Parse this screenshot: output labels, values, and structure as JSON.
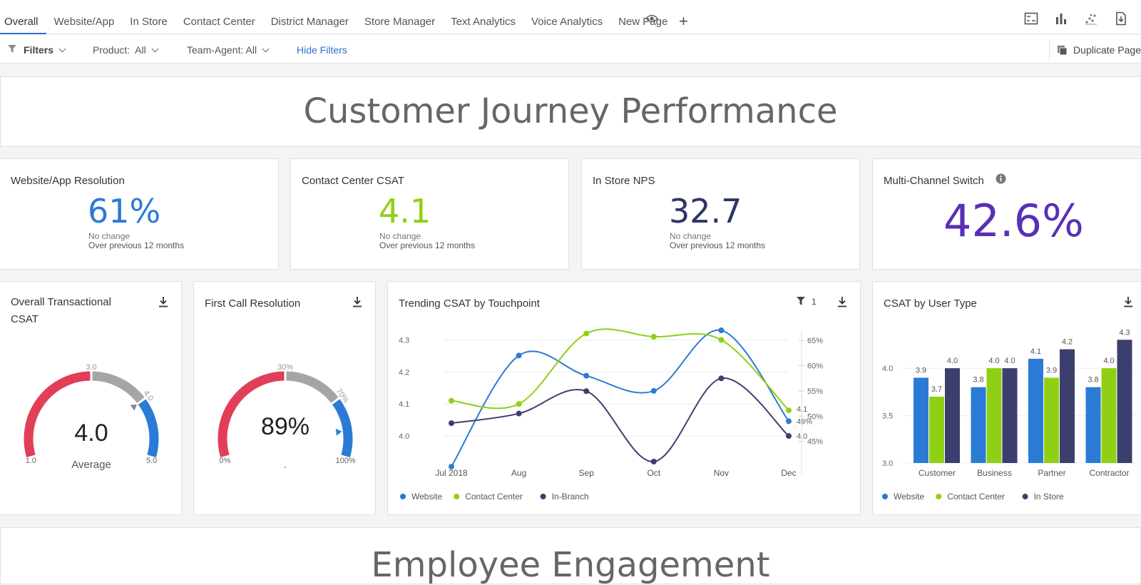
{
  "tabs": [
    "Overall",
    "Website/App",
    "In Store",
    "Contact Center",
    "District Manager",
    "Store Manager",
    "Text Analytics",
    "Voice Analytics",
    "New Page"
  ],
  "toolbar_icons": [
    "layout-icon",
    "bar-chart-icon",
    "scatter-icon",
    "export-icon"
  ],
  "filters": {
    "label": "Filters",
    "product_label": "Product:",
    "product_value": "All",
    "team_label": "Team-Agent:",
    "team_value": "All",
    "hide": "Hide Filters",
    "duplicate": "Duplicate Page"
  },
  "colors": {
    "website": "#2b7bd6",
    "contact_center": "#8fd014",
    "in_store": "#3b3f6e",
    "gauge_red": "#e23e57",
    "gauge_gray": "#a5a5a5",
    "gauge_blue": "#2b7bd6",
    "kpi_purple": "#5a2fb8"
  },
  "section1_title": "Customer Journey Performance",
  "section2_title": "Employee Engagement",
  "kpis": [
    {
      "title": "Website/App Resolution",
      "value": "61%",
      "change": "No change",
      "period": "Over previous 12 months",
      "color": "#2b7bd6"
    },
    {
      "title": "Contact Center CSAT",
      "value": "4.1",
      "change": "No change",
      "period": "Over previous 12 months",
      "color": "#8fd014"
    },
    {
      "title": "In Store NPS",
      "value": "32.7",
      "change": "No change",
      "period": "Over previous 12 months",
      "color": "#2d3563"
    },
    {
      "title": "Multi-Channel Switch",
      "value": "42.6%",
      "color": "#5a2fb8"
    }
  ],
  "gauge1": {
    "title_line1": "Overall Transactional",
    "title_line2": "CSAT",
    "value": "4.0",
    "caption": "Average",
    "min": "1.0",
    "max": "5.0",
    "mark1": "3.0",
    "mark2": "4.0",
    "level": 0.75
  },
  "gauge2": {
    "title": "First Call Resolution",
    "value": "89%",
    "caption": ".",
    "min": "0%",
    "max": "100%",
    "mark1": "30%",
    "mark2": "70%",
    "level": 0.89
  },
  "trend": {
    "title": "Trending CSAT by Touchpoint",
    "filter_count": "1",
    "end_labels": [
      "4.1",
      "49%",
      "4.0"
    ]
  },
  "usertype": {
    "title": "CSAT by User Type"
  },
  "chart_data": [
    {
      "type": "line",
      "title": "Trending CSAT by Touchpoint",
      "x": [
        "Jul 2018",
        "Aug",
        "Sep",
        "Oct",
        "Nov",
        "Dec"
      ],
      "y_ticks": [
        "4.0",
        "4.1",
        "4.2",
        "4.3"
      ],
      "y2_ticks": [
        "45%",
        "50%",
        "55%",
        "60%",
        "65%"
      ],
      "ylim": [
        3.92,
        4.33
      ],
      "y2lim": [
        41,
        67
      ],
      "series": [
        {
          "name": "Website",
          "axis": "right",
          "values": [
            40,
            62,
            58,
            55,
            67,
            49
          ]
        },
        {
          "name": "Contact Center",
          "axis": "left",
          "values": [
            4.11,
            4.1,
            4.32,
            4.31,
            4.3,
            4.08
          ]
        },
        {
          "name": "In-Branch",
          "axis": "left",
          "values": [
            4.04,
            4.07,
            4.14,
            3.92,
            4.18,
            4.0
          ]
        }
      ],
      "legend": "bottom"
    },
    {
      "type": "bar",
      "title": "CSAT by User Type",
      "categories": [
        "Customer",
        "Business",
        "Partner",
        "Contractor"
      ],
      "y_ticks": [
        "3.0",
        "3.5",
        "4.0"
      ],
      "ylim": [
        3.0,
        4.4
      ],
      "series": [
        {
          "name": "Website",
          "values": [
            3.9,
            3.8,
            4.1,
            3.8
          ]
        },
        {
          "name": "Contact Center",
          "values": [
            3.7,
            4.0,
            3.9,
            4.0
          ]
        },
        {
          "name": "In Store",
          "values": [
            4.0,
            4.0,
            4.2,
            4.3
          ]
        }
      ],
      "legend": "bottom"
    }
  ]
}
